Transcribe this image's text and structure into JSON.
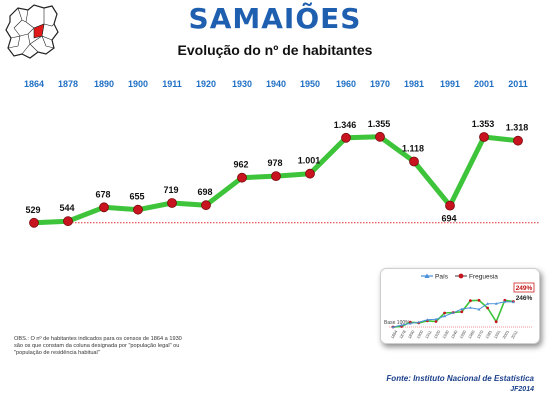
{
  "header": {
    "title": "SAMAIÕES",
    "subtitle": "Evolução do nº de habitantes"
  },
  "note": "OBS.: O nº de habitantes indicados para os censos de 1864 a 1930 são os que constam da coluna designada por \"população legal\" ou \"população de residência habitual\"",
  "footer": {
    "source": "Fonte: Instituto Nacional de Estatística",
    "signature": "JF2014"
  },
  "colors": {
    "title": "#1f5fb0",
    "year_labels": "#1f6fc4",
    "line": "#3ec43a",
    "marker": "#c8141e",
    "baseline": "#e03030",
    "pais": "#4a90d9"
  },
  "chart_data": [
    {
      "type": "line",
      "x": [
        "1864",
        "1878",
        "1890",
        "1900",
        "1911",
        "1920",
        "1930",
        "1940",
        "1950",
        "1960",
        "1970",
        "1981",
        "1991",
        "2001",
        "2011"
      ],
      "values": [
        529,
        544,
        678,
        655,
        719,
        698,
        962,
        978,
        1001,
        1346,
        1355,
        1118,
        694,
        1353,
        1318
      ],
      "labels": [
        "529",
        "544",
        "678",
        "655",
        "719",
        "698",
        "962",
        "978",
        "1.001",
        "1.346",
        "1.355",
        "1.118",
        "694",
        "1.353",
        "1.318"
      ],
      "baseline": 529,
      "legend": "none",
      "grid": false
    },
    {
      "type": "line",
      "legend": "top",
      "legend_labels": [
        "País",
        "Freguesia"
      ],
      "base_label": "Base 100%",
      "annotations": [
        "249%",
        "246%"
      ],
      "x": [
        "1864",
        "1878",
        "1890",
        "1900",
        "1911",
        "1920",
        "1930",
        "1940",
        "1950",
        "1960",
        "1970",
        "1981",
        "1991",
        "2001",
        "2011"
      ],
      "series": [
        {
          "name": "País",
          "values": [
            100,
            111,
            121,
            128,
            142,
            145,
            164,
            183,
            205,
            213,
            203,
            236,
            237,
            248,
            246
          ]
        },
        {
          "name": "Freguesia",
          "values": [
            100,
            103,
            128,
            124,
            136,
            132,
            182,
            185,
            189,
            254,
            256,
            211,
            131,
            256,
            249
          ]
        }
      ],
      "ylim": [
        80,
        270
      ]
    }
  ]
}
